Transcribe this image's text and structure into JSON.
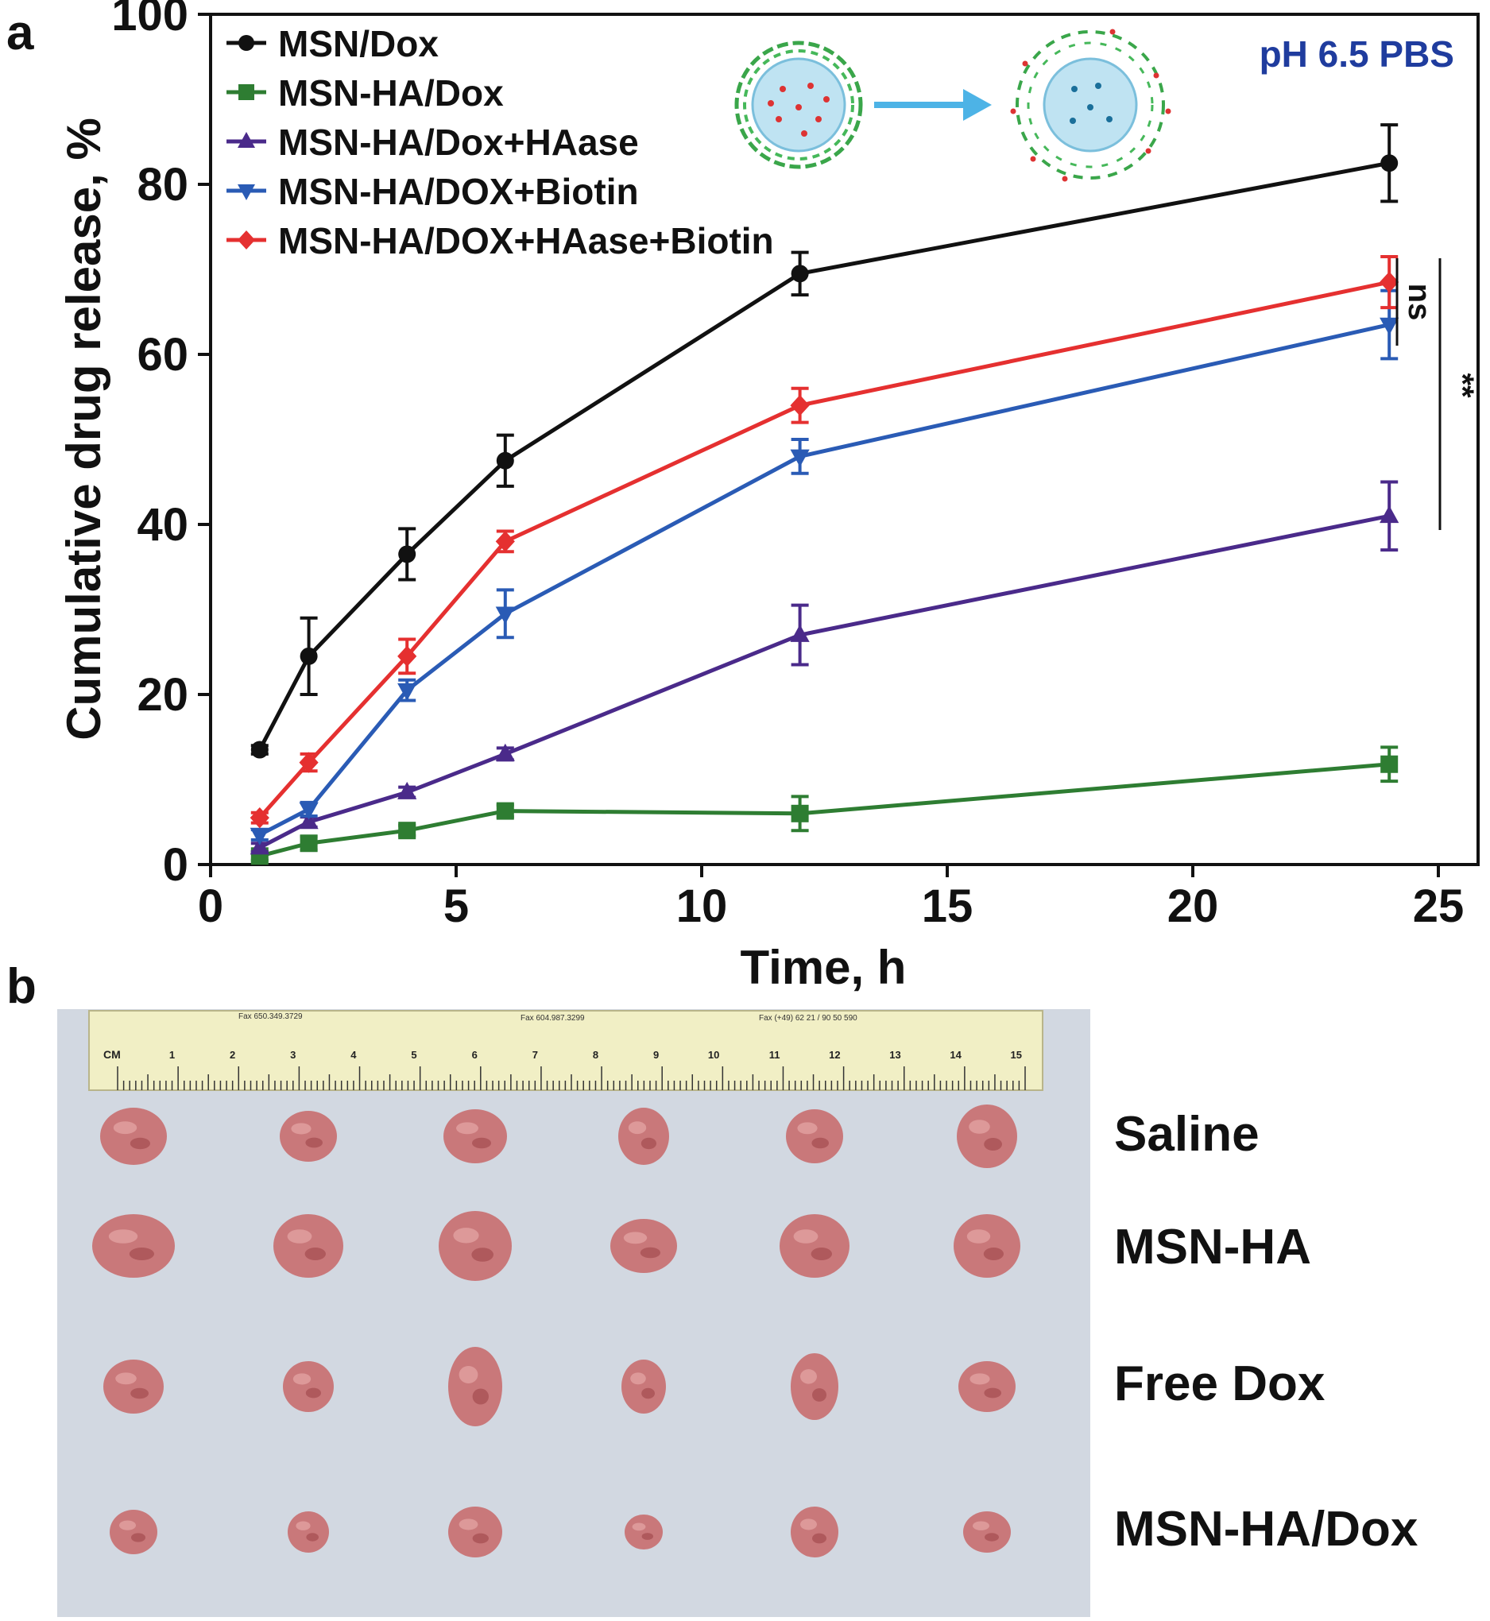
{
  "panel_a": {
    "label": "a"
  },
  "panel_b": {
    "label": "b",
    "row_labels": [
      "Saline",
      "MSN-HA",
      "Free Dox",
      "MSN-HA/Dox"
    ],
    "ruler": {
      "unit_label": "CM",
      "numbers": [
        "1",
        "2",
        "3",
        "4",
        "5",
        "6",
        "7",
        "8",
        "9",
        "10",
        "11",
        "12",
        "13",
        "14",
        "15"
      ],
      "fax_texts": [
        "Fax 650.349.3729",
        "Fax 604.987.3299",
        "Fax (+49) 62 21 / 90 50 590"
      ]
    }
  },
  "colors": {
    "black": "#111111",
    "green": "#2e7d32",
    "purple": "#4a2a8a",
    "blue": "#2a5bb5",
    "red": "#e53030",
    "ph_label": "#1f3c9e",
    "tumor": "#c9787a",
    "tray": "#d9dee6",
    "ruler": "#f1efc5"
  },
  "chart_data": {
    "type": "line",
    "title": "",
    "annotation": "pH 6.5 PBS",
    "xlabel": "Time, h",
    "ylabel": "Cumulative drug release, %",
    "xlim": [
      0,
      25
    ],
    "ylim": [
      0,
      100
    ],
    "xticks": [
      0,
      5,
      10,
      15,
      20,
      25
    ],
    "yticks": [
      0,
      20,
      40,
      60,
      80,
      100
    ],
    "legend_position": "top-left",
    "x": [
      1,
      2,
      4,
      6,
      12,
      24
    ],
    "series": [
      {
        "name": "MSN/Dox",
        "marker": "circle",
        "color": "#111111",
        "values": [
          13.5,
          24.5,
          36.5,
          47.5,
          69.5,
          82.5
        ],
        "errors": [
          0.5,
          4.5,
          3.0,
          3.0,
          2.5,
          4.5
        ]
      },
      {
        "name": "MSN-HA/Dox",
        "marker": "square",
        "color": "#2e7d32",
        "values": [
          1.0,
          2.5,
          4.0,
          6.3,
          6.0,
          11.8
        ],
        "errors": [
          0.5,
          0.8,
          0.6,
          0.7,
          2.0,
          2.0
        ]
      },
      {
        "name": "MSN-HA/Dox+HAase",
        "marker": "triangle-up",
        "color": "#4a2a8a",
        "values": [
          2.0,
          5.0,
          8.5,
          13.0,
          27.0,
          41.0
        ],
        "errors": [
          0.5,
          0.6,
          0.6,
          0.7,
          3.5,
          4.0
        ]
      },
      {
        "name": "MSN-HA/DOX+Biotin",
        "marker": "triangle-down",
        "color": "#2a5bb5",
        "values": [
          3.5,
          6.5,
          20.5,
          29.5,
          48.0,
          63.5
        ],
        "errors": [
          0.6,
          0.8,
          1.2,
          2.8,
          2.0,
          4.0
        ]
      },
      {
        "name": "MSN-HA/DOX+HAase+Biotin",
        "marker": "diamond",
        "color": "#e53030",
        "values": [
          5.5,
          12.0,
          24.5,
          38.0,
          54.0,
          68.5
        ],
        "errors": [
          0.6,
          1.0,
          2.0,
          1.2,
          2.0,
          3.0
        ]
      }
    ],
    "significance": [
      {
        "label": "ns",
        "between": [
          "MSN-HA/DOX+HAase+Biotin",
          "MSN-HA/DOX+Biotin"
        ]
      },
      {
        "label": "**",
        "between": [
          "MSN-HA/DOX+HAase+Biotin",
          "MSN-HA/Dox+HAase"
        ]
      }
    ]
  }
}
